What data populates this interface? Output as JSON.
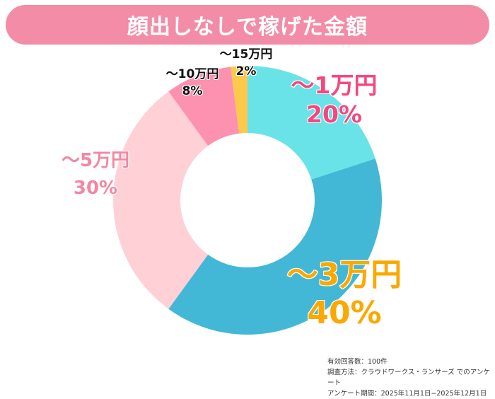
{
  "title": "顔出しなしで稼げた金額",
  "chart_data": {
    "type": "pie",
    "subtype": "donut",
    "title": "顔出しなしで稼げた金額",
    "categories": [
      "〜1万円",
      "〜3万円",
      "〜5万円",
      "〜10万円",
      "〜15万円"
    ],
    "values": [
      20,
      40,
      30,
      8,
      2
    ],
    "unit": "%",
    "colors": [
      "#6ae3e8",
      "#42b8d6",
      "#ffd0d6",
      "#fd92b0",
      "#fcc94a"
    ],
    "label_colors": [
      "#f5477f",
      "#fba800",
      "#f287a3",
      "#111111",
      "#111111"
    ],
    "start_angle": "12 o'clock",
    "direction": "clockwise",
    "legend": "none (direct labels)"
  },
  "labels": [
    {
      "name": "〜1万円",
      "pct": "20%"
    },
    {
      "name": "〜3万円",
      "pct": "40%"
    },
    {
      "name": "〜5万円",
      "pct": "30%"
    },
    {
      "name": "〜10万円",
      "pct": "8%"
    },
    {
      "name": "〜15万円",
      "pct": "2%"
    }
  ],
  "notes": {
    "line1": "有効回答数：100件",
    "line2": "調査方法：クラウドワークス・ランサーズ でのアンケート",
    "line3": "アンケート期間：2025年11月1日−2025年12月1日"
  }
}
